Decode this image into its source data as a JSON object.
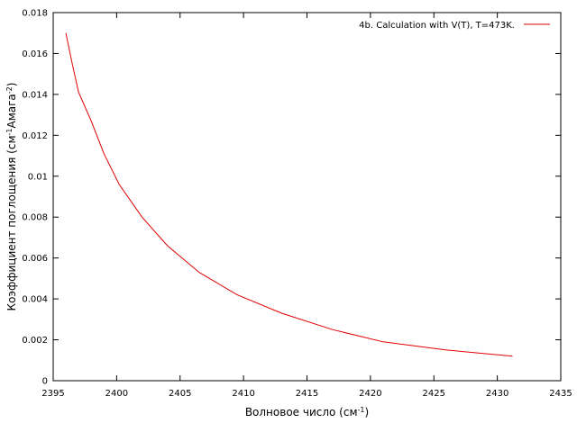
{
  "chart_data": {
    "type": "line",
    "xlabel_main": "Волновое число (см",
    "xlabel_sup": "-1",
    "xlabel_tail": ")",
    "ylabel_main": "Коэффициент поглощения (см",
    "ylabel_sup1": "-1",
    "ylabel_mid": "Амага",
    "ylabel_sup2": "-2",
    "ylabel_tail": ")",
    "xlim": [
      2395,
      2435
    ],
    "ylim": [
      0,
      0.018
    ],
    "x_ticks": [
      2395,
      2400,
      2405,
      2410,
      2415,
      2420,
      2425,
      2430,
      2435
    ],
    "x_tick_labels": [
      "2395",
      "2400",
      "2405",
      "2410",
      "2415",
      "2420",
      "2425",
      "2430",
      "2435"
    ],
    "y_ticks": [
      0,
      0.002,
      0.004,
      0.006,
      0.008,
      0.01,
      0.012,
      0.014,
      0.016,
      0.018
    ],
    "y_tick_labels": [
      "0",
      "0.002",
      "0.004",
      "0.006",
      "0.008",
      "0.01",
      "0.012",
      "0.014",
      "0.016",
      "0.018"
    ],
    "legend_position": "top-right",
    "series": [
      {
        "name": "4b. Calculation with V(T), T=473K.",
        "color": "#e00000",
        "x": [
          2396.0,
          2396.5,
          2397.0,
          2398.0,
          2399.0,
          2400.2,
          2402.0,
          2404.0,
          2406.5,
          2409.5,
          2413.0,
          2417.0,
          2421.0,
          2426.0,
          2431.2
        ],
        "y": [
          0.017,
          0.0155,
          0.0141,
          0.0127,
          0.0111,
          0.0096,
          0.008,
          0.0066,
          0.0053,
          0.0042,
          0.0033,
          0.0025,
          0.0019,
          0.0015,
          0.0012
        ]
      }
    ]
  }
}
